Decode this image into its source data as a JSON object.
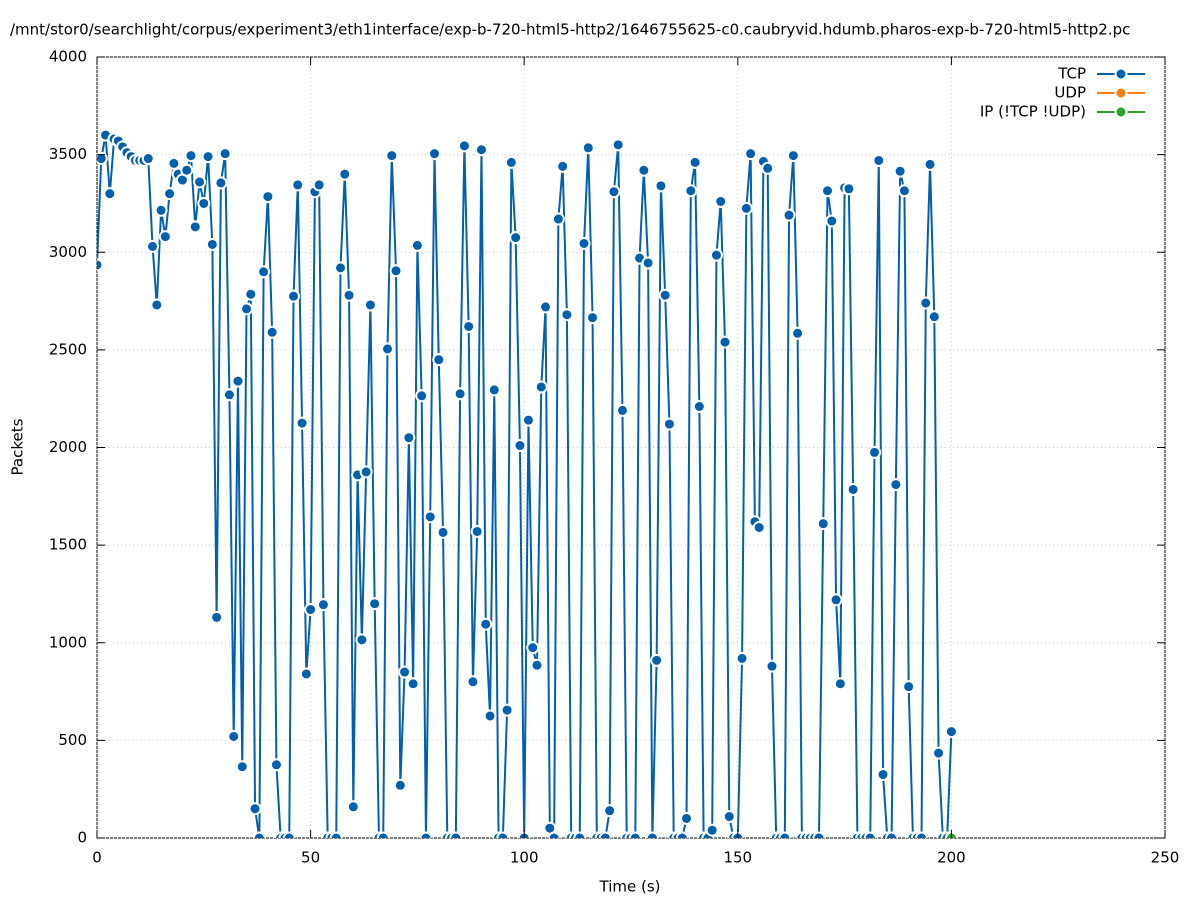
{
  "chart_data": {
    "type": "line",
    "title": "/mnt/stor0/searchlight/corpus/experiment3/eth1interface/exp-b-720-html5-http2/1646755625-c0.caubryvid.hdumb.pharos-exp-b-720-html5-http2.pc",
    "xlabel": "Time (s)",
    "ylabel": "Packets",
    "xlim": [
      0,
      250
    ],
    "xticks": [
      0,
      50,
      100,
      150,
      200,
      250
    ],
    "ylim": [
      0,
      4000
    ],
    "yticks": [
      0,
      500,
      1000,
      1500,
      2000,
      2500,
      3000,
      3500,
      4000
    ],
    "grid": true,
    "legend": "top-right",
    "series": [
      {
        "name": "TCP",
        "color": "#0060ad",
        "x": [
          0,
          1,
          2,
          3,
          4,
          5,
          6,
          7,
          8,
          9,
          10,
          11,
          12,
          13,
          14,
          15,
          16,
          17,
          18,
          19,
          20,
          21,
          22,
          23,
          24,
          25,
          26,
          27,
          28,
          29,
          30,
          31,
          32,
          33,
          34,
          35,
          36,
          37,
          38,
          39,
          40,
          41,
          42,
          43,
          44,
          45,
          46,
          47,
          48,
          49,
          50,
          51,
          52,
          53,
          54,
          55,
          56,
          57,
          58,
          59,
          60,
          61,
          62,
          63,
          64,
          65,
          66,
          67,
          68,
          69,
          70,
          71,
          72,
          73,
          74,
          75,
          76,
          77,
          78,
          79,
          80,
          81,
          82,
          83,
          84,
          85,
          86,
          87,
          88,
          89,
          90,
          91,
          92,
          93,
          94,
          95,
          96,
          97,
          98,
          99,
          100,
          101,
          102,
          103,
          104,
          105,
          106,
          107,
          108,
          109,
          110,
          111,
          112,
          113,
          114,
          115,
          116,
          117,
          118,
          119,
          120,
          121,
          122,
          123,
          124,
          125,
          126,
          127,
          128,
          129,
          130,
          131,
          132,
          133,
          134,
          135,
          136,
          137,
          138,
          139,
          140,
          141,
          142,
          143,
          144,
          145,
          146,
          147,
          148,
          149,
          150,
          151,
          152,
          153,
          154,
          155,
          156,
          157,
          158,
          159,
          160,
          161,
          162,
          163,
          164,
          165,
          166,
          167,
          168,
          169,
          170,
          171,
          172,
          173,
          174,
          175,
          176,
          177,
          178,
          179,
          180,
          181,
          182,
          183,
          184,
          185,
          186,
          187,
          188,
          189,
          190,
          191,
          192,
          193,
          194,
          195,
          196,
          197,
          198,
          199,
          200
        ],
        "values": [
          2935,
          3480,
          3600,
          3300,
          3580,
          3570,
          3540,
          3510,
          3490,
          3470,
          3470,
          3470,
          3480,
          3030,
          2730,
          3215,
          3080,
          3300,
          3455,
          3400,
          3370,
          3420,
          3495,
          3130,
          3360,
          3250,
          3490,
          3040,
          1130,
          3355,
          3505,
          2270,
          520,
          2340,
          365,
          2710,
          2785,
          150,
          0,
          2900,
          3285,
          2590,
          375,
          0,
          0,
          0,
          2775,
          3345,
          2125,
          840,
          1170,
          3310,
          3345,
          1195,
          0,
          0,
          0,
          2920,
          3400,
          2780,
          160,
          1860,
          1015,
          1875,
          2730,
          1200,
          0,
          0,
          2505,
          3495,
          2905,
          270,
          850,
          2050,
          790,
          3035,
          2265,
          0,
          1645,
          3505,
          2450,
          1565,
          0,
          0,
          0,
          2275,
          3545,
          2620,
          800,
          1570,
          3525,
          1095,
          625,
          2295,
          0,
          0,
          655,
          3460,
          3075,
          2010,
          0,
          2140,
          975,
          885,
          2310,
          2720,
          50,
          0,
          3170,
          3440,
          2680,
          0,
          0,
          0,
          3045,
          3535,
          2665,
          0,
          0,
          0,
          140,
          3310,
          3550,
          2190,
          0,
          0,
          0,
          2970,
          3420,
          2945,
          0,
          910,
          3340,
          2780,
          2120,
          0,
          0,
          0,
          100,
          3315,
          3460,
          2210,
          0,
          0,
          40,
          2985,
          3260,
          2540,
          110,
          0,
          0,
          920,
          3225,
          3505,
          1620,
          1590,
          3465,
          3430,
          880,
          0,
          0,
          0,
          3190,
          3495,
          2585,
          0,
          0,
          0,
          0,
          0,
          1610,
          3315,
          3160,
          1220,
          790,
          3330,
          3325,
          1785,
          0,
          0,
          0,
          0,
          1975,
          3470,
          325,
          0,
          0,
          1810,
          3415,
          3315,
          775,
          0,
          0,
          0,
          2740,
          3450,
          2670,
          435,
          0,
          0,
          545
        ]
      },
      {
        "name": "UDP",
        "color": "#ff7f0e",
        "x": [],
        "values": []
      },
      {
        "name": "IP (!TCP  !UDP)",
        "color": "#2ca02c",
        "x": [
          200
        ],
        "values": [
          0
        ]
      }
    ]
  }
}
